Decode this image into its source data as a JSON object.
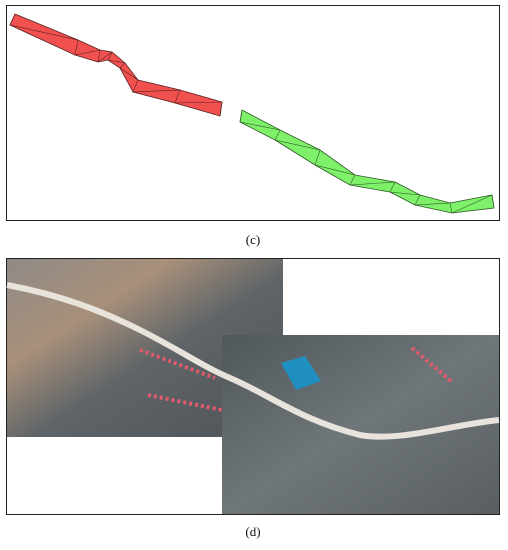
{
  "panels": [
    {
      "caption": "(c)"
    },
    {
      "caption": "(d)"
    }
  ]
}
